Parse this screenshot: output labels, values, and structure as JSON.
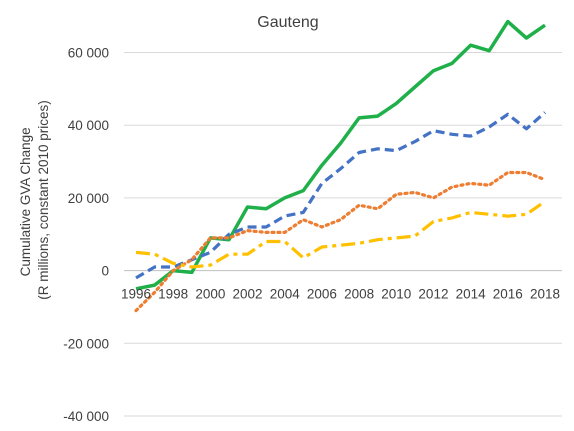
{
  "chart_data": {
    "type": "line",
    "title": "Gauteng",
    "xlabel": "",
    "ylabel": "Cumulative GVA Change (R millions, constant 2010 prices)",
    "ylabel_lines": [
      "Cumulative GVA Change",
      "(R millions, constant 2010 prices)"
    ],
    "ylim": [
      -40000,
      60000
    ],
    "yticks": [
      -40000,
      -20000,
      0,
      20000,
      40000,
      60000
    ],
    "ytick_labels": [
      "-40 000",
      "-20 000",
      "0",
      "20 000",
      "40 000",
      "60 000"
    ],
    "x": [
      1996,
      1997,
      1998,
      1999,
      2000,
      2001,
      2002,
      2003,
      2004,
      2005,
      2006,
      2007,
      2008,
      2009,
      2010,
      2011,
      2012,
      2013,
      2014,
      2015,
      2016,
      2017,
      2018
    ],
    "xtick_labels": [
      "1996",
      "1998",
      "2000",
      "2002",
      "2004",
      "2006",
      "2008",
      "2010",
      "2012",
      "2014",
      "2016",
      "2018"
    ],
    "grid": true,
    "series": [
      {
        "color": "#1FB04A",
        "dash": "solid",
        "values": [
          -5000,
          -4000,
          0,
          -500,
          9000,
          8500,
          17500,
          17000,
          20000,
          22000,
          29000,
          35000,
          42000,
          42500,
          46000,
          50500,
          55000,
          57000,
          62000,
          60500,
          68500,
          64000,
          67500
        ]
      },
      {
        "color": "#4472C4",
        "dash": "dashed",
        "values": [
          -2000,
          1000,
          1000,
          3000,
          5000,
          10000,
          12000,
          12000,
          15000,
          16000,
          24000,
          28000,
          32500,
          33500,
          33000,
          35500,
          38500,
          37500,
          37000,
          39500,
          43000,
          39000,
          43500
        ]
      },
      {
        "color": "#ED7D31",
        "dash": "dotted",
        "values": [
          -11000,
          -6000,
          0,
          3000,
          9000,
          9000,
          11000,
          10500,
          10500,
          14000,
          12000,
          14000,
          18000,
          17000,
          21000,
          21500,
          20000,
          23000,
          24000,
          23500,
          27000,
          27000,
          25000
        ]
      },
      {
        "color": "#FFC000",
        "dash": "dashdot",
        "values": [
          5000,
          4500,
          2000,
          1000,
          1500,
          4500,
          4500,
          8000,
          8000,
          3500,
          6500,
          7000,
          7500,
          8500,
          9000,
          9500,
          13500,
          14500,
          16000,
          15500,
          15000,
          15500,
          19000
        ]
      }
    ]
  }
}
